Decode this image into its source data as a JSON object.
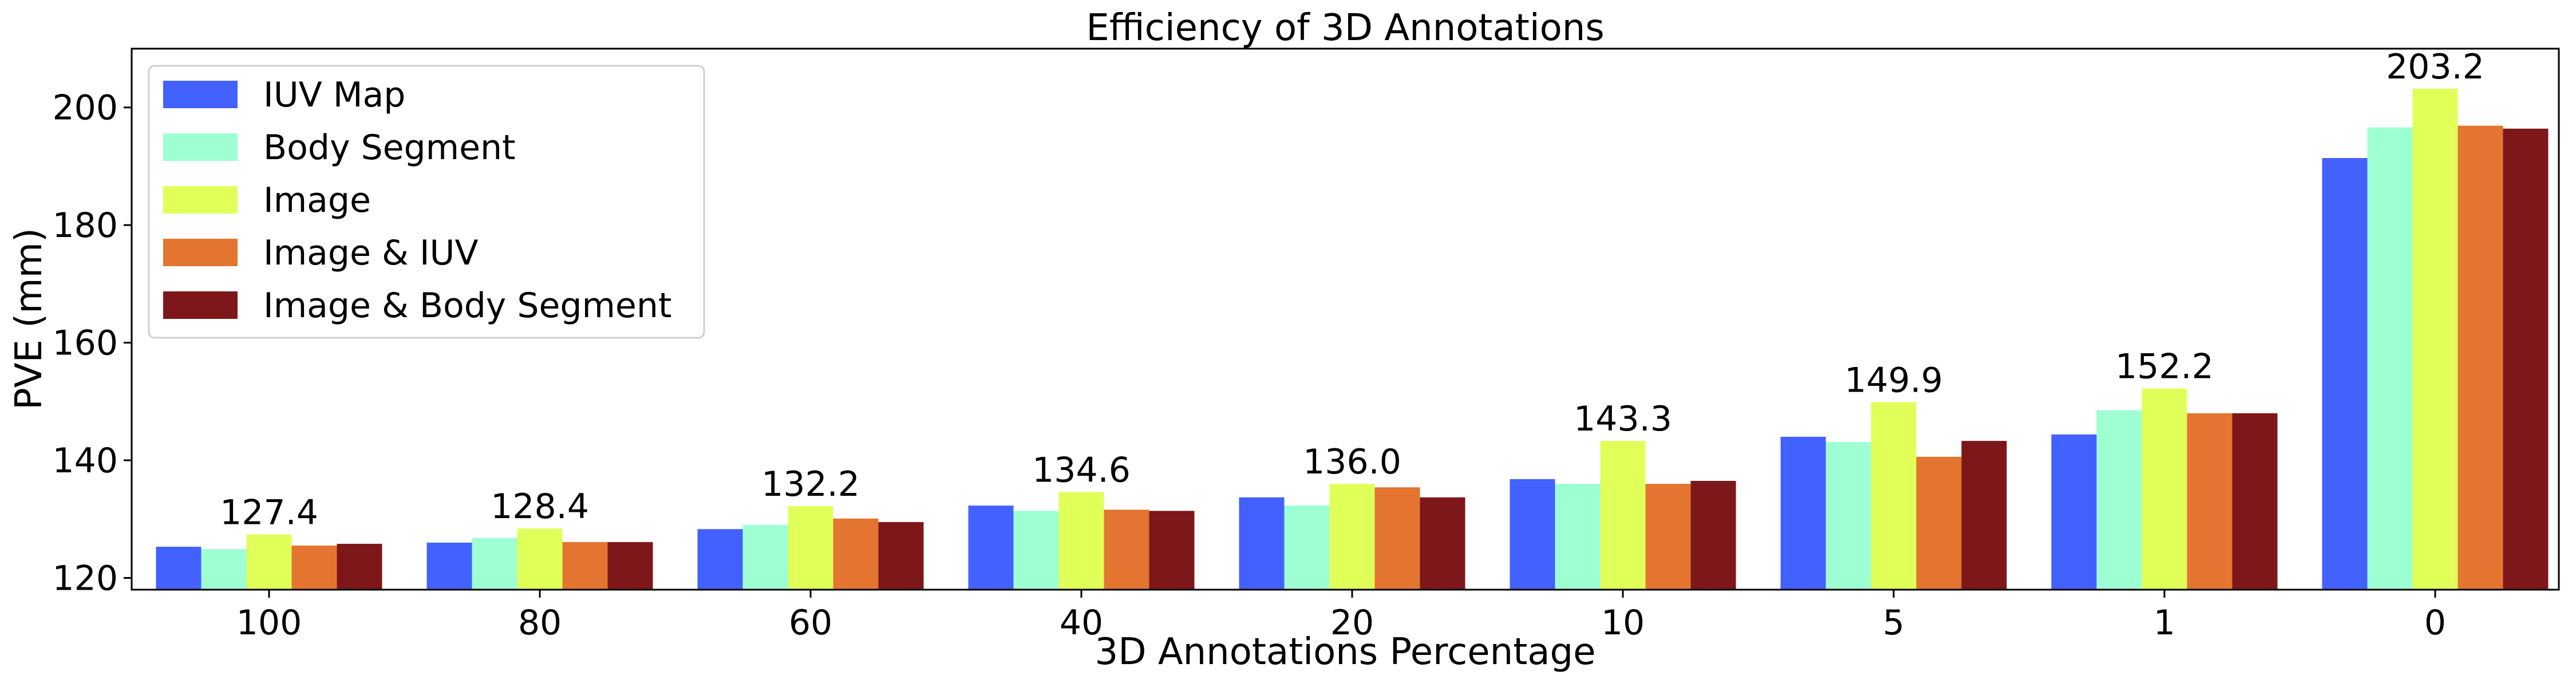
{
  "chart_data": {
    "type": "bar",
    "title": "Efficiency of 3D Annotations",
    "xlabel": "3D Annotations Percentage",
    "ylabel": "PVE (mm)",
    "categories": [
      "100",
      "80",
      "60",
      "40",
      "20",
      "10",
      "5",
      "1",
      "0"
    ],
    "ylim": [
      118,
      210
    ],
    "yticks": [
      120,
      140,
      160,
      180,
      200
    ],
    "grid": false,
    "legend_position": "top-left",
    "series": [
      {
        "name": "IUV Map",
        "color": "#4361ff",
        "values": [
          125.3,
          126.0,
          128.3,
          132.3,
          133.7,
          136.8,
          144.0,
          144.4,
          191.4
        ]
      },
      {
        "name": "Body Segment",
        "color": "#9effd3",
        "values": [
          124.9,
          126.8,
          129.0,
          131.4,
          132.3,
          136.0,
          143.1,
          148.5,
          196.6
        ]
      },
      {
        "name": "Image",
        "color": "#e0ff59",
        "values": [
          127.4,
          128.4,
          132.2,
          134.6,
          136.0,
          143.3,
          149.9,
          152.2,
          203.2
        ]
      },
      {
        "name": "Image & IUV",
        "color": "#e37530",
        "values": [
          125.5,
          126.1,
          130.1,
          131.6,
          135.4,
          136.0,
          140.6,
          148.0,
          196.9
        ]
      },
      {
        "name": "Image & Body Segment",
        "color": "#7e1719",
        "values": [
          125.8,
          126.1,
          129.5,
          131.4,
          133.7,
          136.5,
          143.3,
          148.0,
          196.4
        ]
      }
    ],
    "annotations": [
      {
        "category": "100",
        "series": "Image",
        "text": "127.4"
      },
      {
        "category": "80",
        "series": "Image",
        "text": "128.4"
      },
      {
        "category": "60",
        "series": "Image",
        "text": "132.2"
      },
      {
        "category": "40",
        "series": "Image",
        "text": "134.6"
      },
      {
        "category": "20",
        "series": "Image",
        "text": "136.0"
      },
      {
        "category": "10",
        "series": "Image",
        "text": "143.3"
      },
      {
        "category": "5",
        "series": "Image",
        "text": "149.9"
      },
      {
        "category": "1",
        "series": "Image",
        "text": "152.2"
      },
      {
        "category": "0",
        "series": "Image",
        "text": "203.2"
      }
    ]
  }
}
